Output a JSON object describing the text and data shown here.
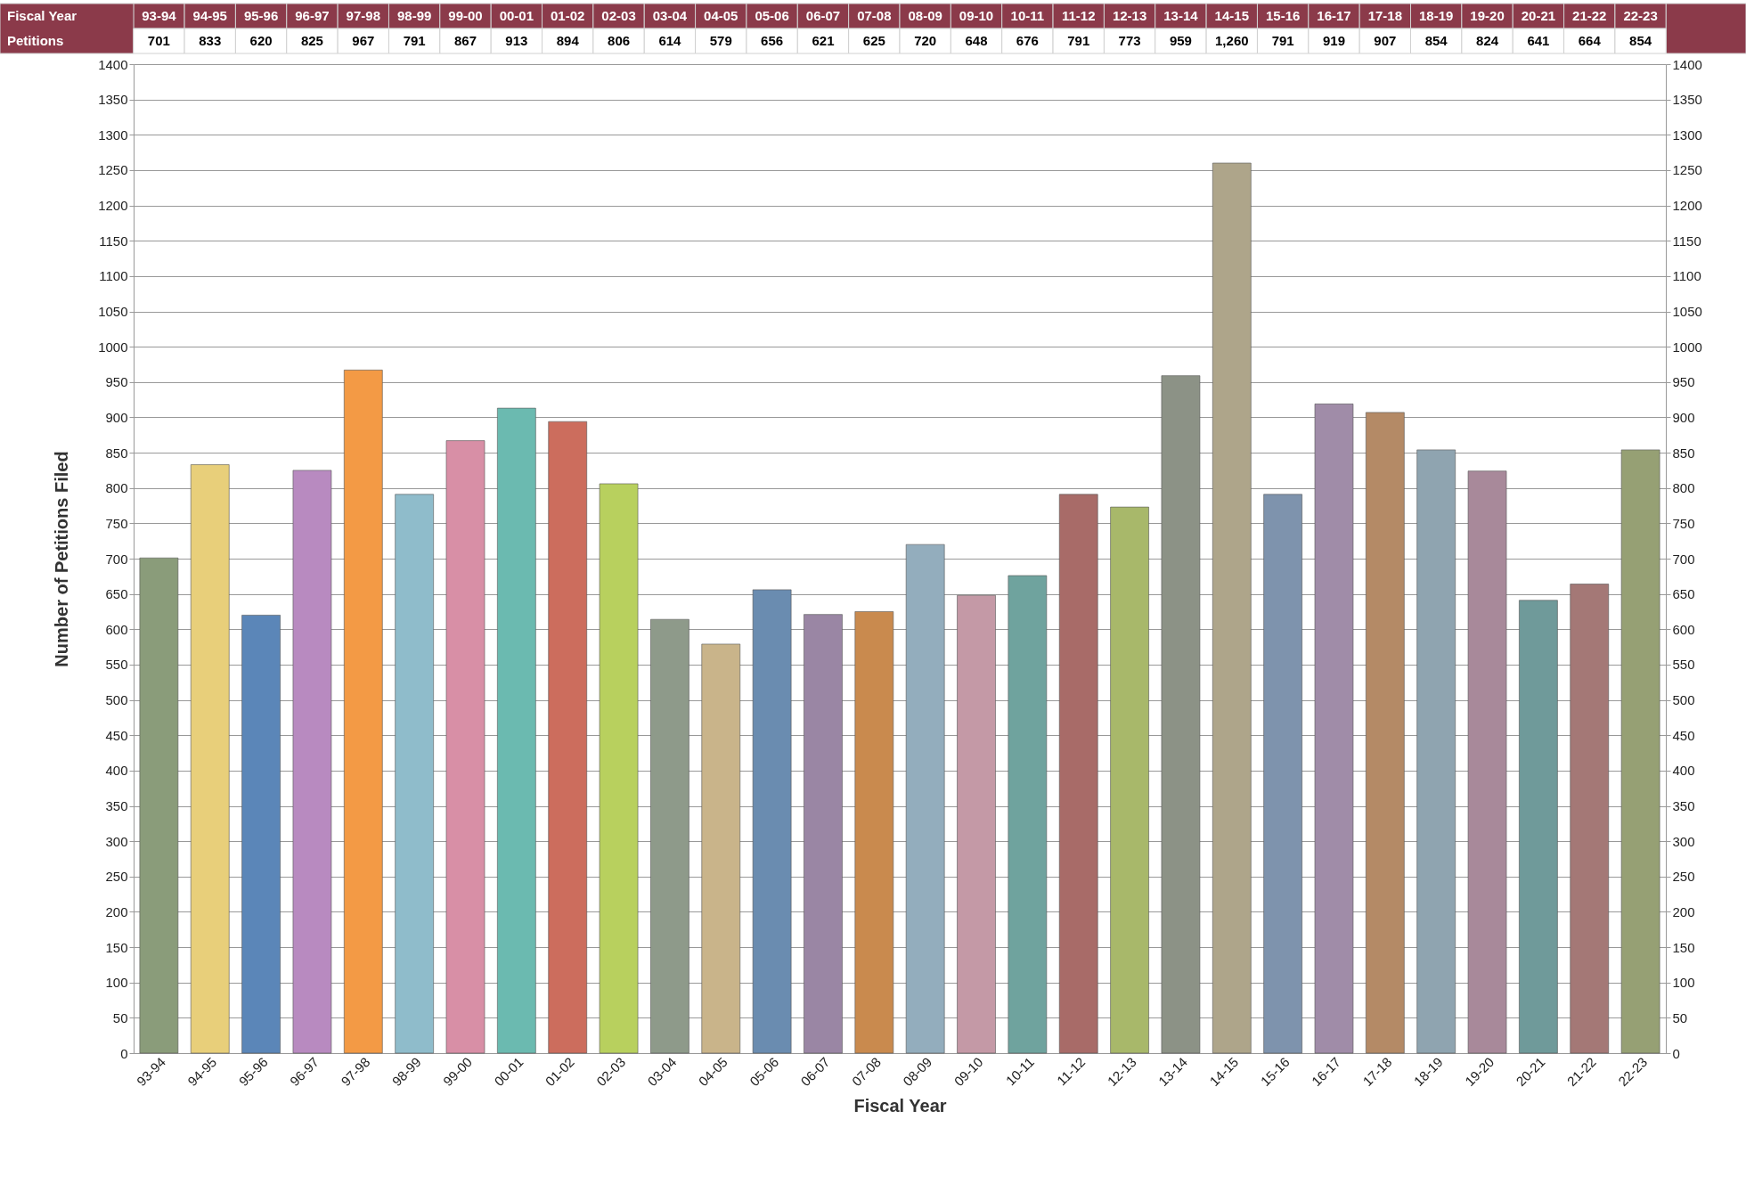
{
  "chart_data": {
    "type": "bar",
    "xlabel": "Fiscal Year",
    "ylabel": "Number of Petitions Filed",
    "annotations": [
      "Petitions"
    ],
    "categories": [
      "93-94",
      "94-95",
      "95-96",
      "96-97",
      "97-98",
      "98-99",
      "99-00",
      "00-01",
      "01-02",
      "02-03",
      "03-04",
      "04-05",
      "05-06",
      "06-07",
      "07-08",
      "08-09",
      "09-10",
      "10-11",
      "11-12",
      "12-13",
      "13-14",
      "14-15",
      "15-16",
      "16-17",
      "17-18",
      "18-19",
      "19-20",
      "20-21",
      "21-22",
      "22-23"
    ],
    "values": [
      701,
      833,
      620,
      825,
      967,
      791,
      867,
      913,
      894,
      806,
      614,
      579,
      656,
      621,
      625,
      720,
      648,
      676,
      791,
      773,
      959,
      1260,
      791,
      919,
      907,
      854,
      824,
      641,
      664,
      854
    ],
    "value_labels": [
      "701",
      "833",
      "620",
      "825",
      "967",
      "791",
      "867",
      "913",
      "894",
      "806",
      "614",
      "579",
      "656",
      "621",
      "625",
      "720",
      "648",
      "676",
      "791",
      "773",
      "959",
      "1,260",
      "791",
      "919",
      "907",
      "854",
      "824",
      "641",
      "664",
      "854"
    ],
    "colors": [
      "#8a9c7a",
      "#e8cf7a",
      "#5b86b8",
      "#b88ac0",
      "#f39a45",
      "#8fbccb",
      "#d88fa6",
      "#6bbab0",
      "#cc6d5d",
      "#b8d05e",
      "#8e9a8a",
      "#c9b48a",
      "#6a8cb0",
      "#9a86a4",
      "#c98a4e",
      "#93adbd",
      "#c499a6",
      "#6fa39e",
      "#a86b68",
      "#a8b86a",
      "#8c9286",
      "#aea58a",
      "#7e93ad",
      "#a08ca8",
      "#b48a66",
      "#8fa4b0",
      "#a8899a",
      "#6f9a9a",
      "#a47876",
      "#96a074"
    ],
    "ylim": [
      0,
      1400
    ],
    "yticks": [
      0,
      50,
      100,
      150,
      200,
      250,
      300,
      350,
      400,
      450,
      500,
      550,
      600,
      650,
      700,
      750,
      800,
      850,
      900,
      950,
      1000,
      1050,
      1100,
      1150,
      1200,
      1250,
      1300,
      1350,
      1400
    ],
    "y2lim": [
      0,
      1400
    ],
    "y2ticks": [
      0,
      50,
      100,
      150,
      200,
      250,
      300,
      350,
      400,
      450,
      500,
      550,
      600,
      650,
      700,
      750,
      800,
      850,
      900,
      950,
      1000,
      1050,
      1100,
      1150,
      1200,
      1250,
      1300,
      1350,
      1400
    ],
    "grid": "y"
  }
}
